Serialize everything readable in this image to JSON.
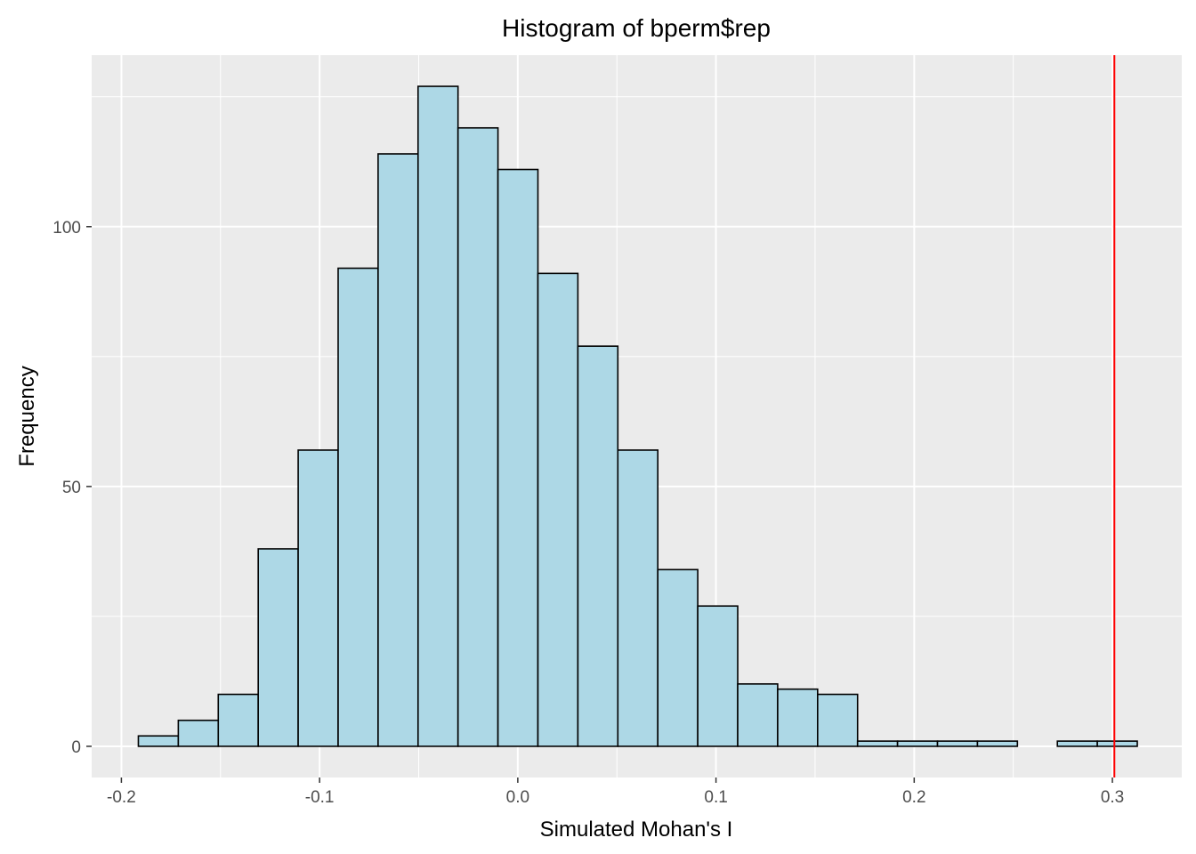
{
  "chart_data": {
    "type": "bar",
    "title": "Histogram of bperm$rep",
    "xlabel": "Simulated Mohan's I",
    "ylabel": "Frequency",
    "xlim": [
      -0.215,
      0.335
    ],
    "ylim": [
      -6,
      133
    ],
    "x_ticks": [
      -0.2,
      -0.1,
      0.0,
      0.1,
      0.2,
      0.3
    ],
    "x_tick_labels": [
      "-0.2",
      "-0.1",
      "0.0",
      "0.1",
      "0.2",
      "0.3"
    ],
    "y_ticks": [
      0,
      50,
      100
    ],
    "y_tick_labels": [
      "0",
      "50",
      "100"
    ],
    "bin_edges": [
      -0.19144,
      -0.17128,
      -0.15112,
      -0.13096,
      -0.1108,
      -0.09064,
      -0.07048,
      -0.05032,
      -0.03016,
      -0.01,
      0.01016,
      0.03032,
      0.05048,
      0.07064,
      0.0908,
      0.11096,
      0.13112,
      0.15128,
      0.17144,
      0.1916,
      0.21176,
      0.23192,
      0.25208,
      0.27224,
      0.2924,
      0.31256
    ],
    "values": [
      2,
      5,
      10,
      38,
      57,
      92,
      114,
      127,
      119,
      111,
      91,
      77,
      57,
      34,
      27,
      12,
      11,
      10,
      1,
      1,
      1,
      1,
      0,
      1,
      1
    ],
    "observed_line": {
      "x": 0.301,
      "color": "#ff0000"
    },
    "bar_fill": "#add8e6",
    "bar_stroke": "#000000",
    "panel_background": "#ebebeb",
    "grid": true
  }
}
